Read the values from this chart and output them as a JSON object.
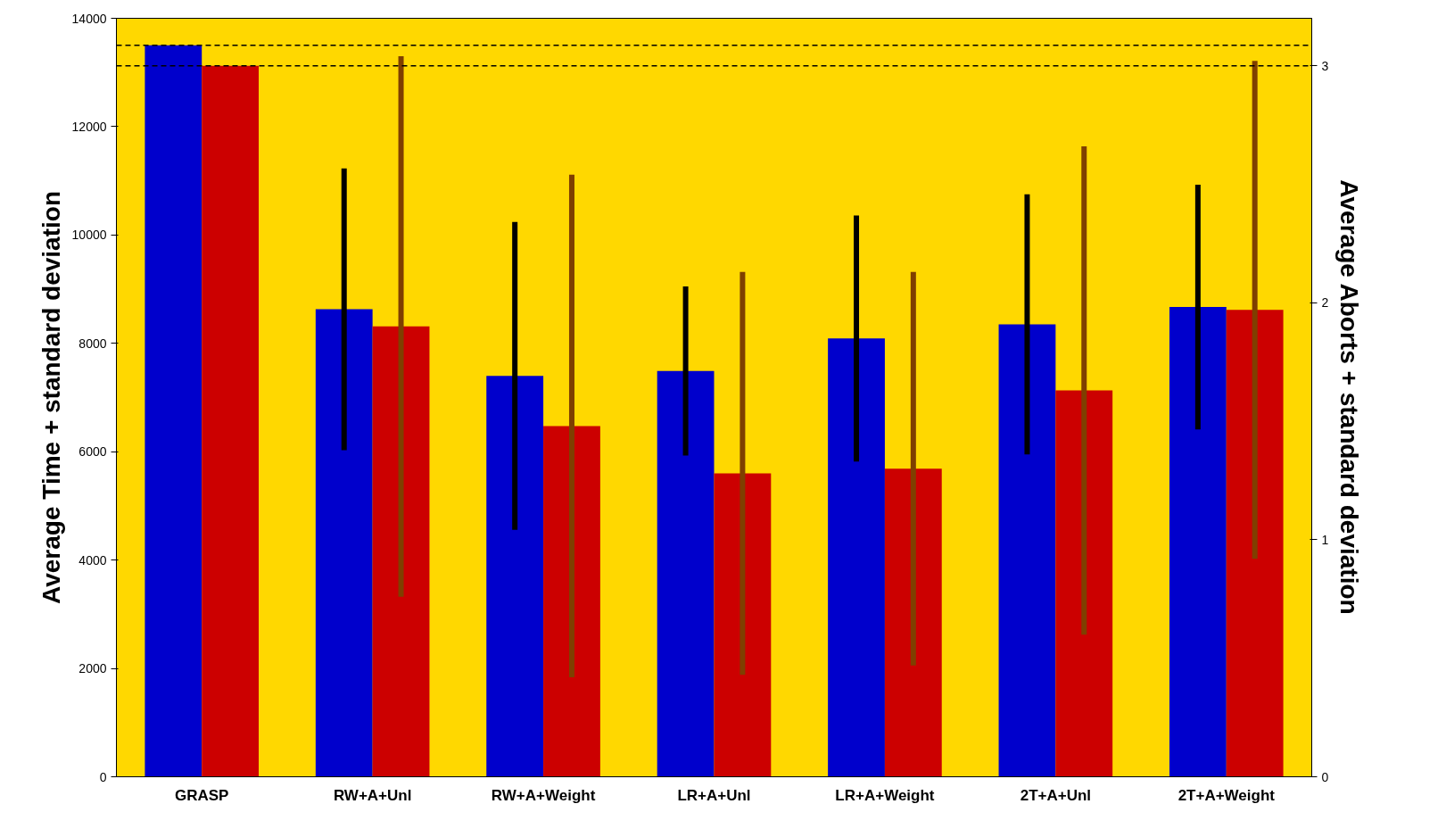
{
  "chart_data": {
    "type": "bar",
    "categories": [
      "GRASP",
      "RW+A+Unl",
      "RW+A+Weight",
      "LR+A+Unl",
      "LR+A+Weight",
      "2T+A+Unl",
      "2T+A+Weight"
    ],
    "ylabel": "Average Time + standard deviation",
    "y2label": "Average Aborts + standard deviation",
    "ylim": [
      0,
      14000
    ],
    "yticks": [
      0,
      2000,
      4000,
      6000,
      8000,
      10000,
      12000,
      14000
    ],
    "y2lim": [
      0,
      3.2
    ],
    "y2ticks": [
      0,
      1,
      2,
      3
    ],
    "series": [
      {
        "color": "#0000cc",
        "values": [
          13500,
          8630,
          7400,
          7490,
          8090,
          8350,
          8670
        ],
        "errors": [
          null,
          2600,
          2840,
          1560,
          2270,
          2400,
          2260
        ]
      },
      {
        "color": "#cc0000",
        "axis": "y2",
        "values": [
          3.0,
          1.9,
          1.48,
          1.28,
          1.3,
          1.63,
          1.97
        ],
        "errors": [
          null,
          1.14,
          1.06,
          0.85,
          0.83,
          1.03,
          1.05
        ]
      }
    ],
    "ref_lines": [
      {
        "axis": "y",
        "value": 13500,
        "line_style": "dashed",
        "color": "#000000"
      },
      {
        "axis": "y2",
        "value": 3,
        "line_style": "dashed",
        "color": "#000000"
      }
    ],
    "grid": false
  }
}
